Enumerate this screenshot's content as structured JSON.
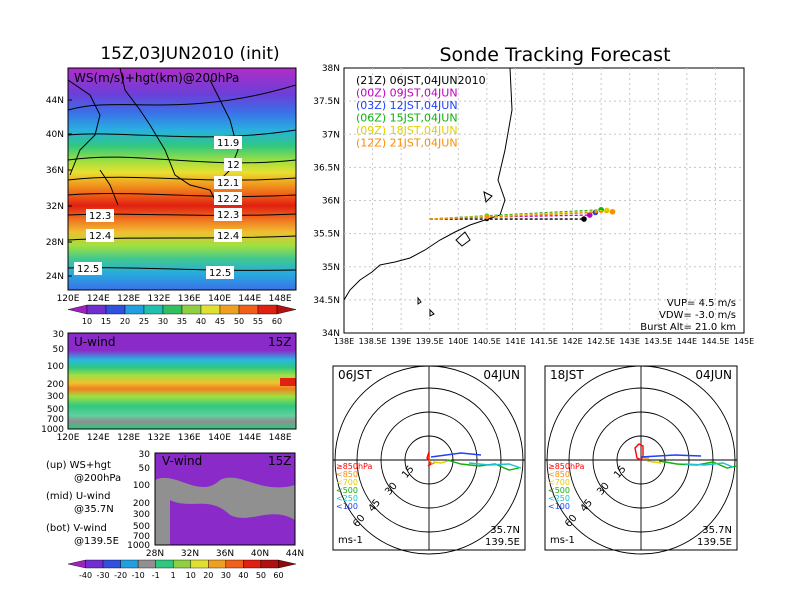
{
  "left_title": "15Z,03JUN2010 (init)",
  "right_title": "Sonde Tracking Forecast",
  "map_panel": {
    "label": "WS(m/s)+hgt(km)@200hPa",
    "lat_ticks": [
      "44N",
      "40N",
      "36N",
      "32N",
      "28N",
      "24N"
    ],
    "lon_ticks": [
      "120E",
      "124E",
      "128E",
      "132E",
      "136E",
      "140E",
      "144E",
      "148E"
    ],
    "contour_labels": [
      "11.9",
      "12",
      "12.1",
      "12.2",
      "12.3",
      "12.3",
      "12.4",
      "12.4",
      "12.5",
      "12.5"
    ]
  },
  "ws_colorbar": {
    "ticks": [
      "10",
      "15",
      "20",
      "25",
      "30",
      "35",
      "40",
      "45",
      "50",
      "55",
      "60"
    ]
  },
  "u_panel": {
    "label": "U-wind",
    "time": "15Z",
    "p_ticks": [
      "30",
      "50",
      "100",
      "200",
      "300",
      "500",
      "700",
      "1000"
    ],
    "lon_ticks": [
      "120E",
      "124E",
      "128E",
      "132E",
      "136E",
      "140E",
      "144E",
      "148E"
    ]
  },
  "v_panel": {
    "label": "V-wind",
    "time": "15Z",
    "p_ticks": [
      "30",
      "50",
      "100",
      "200",
      "300",
      "500",
      "700",
      "1000"
    ],
    "lat_ticks": [
      "28N",
      "32N",
      "36N",
      "40N",
      "44N"
    ]
  },
  "notes": [
    {
      "a": "(up) WS+hgt",
      "b": "@200hPa"
    },
    {
      "a": "(mid) U-wind",
      "b": "@35.7N"
    },
    {
      "a": "(bot) V-wind",
      "b": "@139.5E"
    }
  ],
  "uv_colorbar": {
    "ticks": [
      "-40",
      "-30",
      "-20",
      "-10",
      "-1",
      "1",
      "10",
      "20",
      "30",
      "40",
      "50",
      "60"
    ]
  },
  "track_map": {
    "lat_ticks": [
      "38N",
      "37.5N",
      "37N",
      "36.5N",
      "36N",
      "35.5N",
      "35N",
      "34.5N",
      "34N"
    ],
    "lon_ticks": [
      "138E",
      "138.5E",
      "139E",
      "139.5E",
      "140E",
      "140.5E",
      "141E",
      "141.5E",
      "142E",
      "142.5E",
      "143E",
      "143.5E",
      "144E",
      "144.5E",
      "145E"
    ],
    "legend": [
      {
        "text": "(21Z) 06JST,04JUN2010",
        "color": "#000000"
      },
      {
        "text": "(00Z) 09JST,04JUN",
        "color": "#c000c0"
      },
      {
        "text": "(03Z) 12JST,04JUN",
        "color": "#2040ff"
      },
      {
        "text": "(06Z) 15JST,04JUN",
        "color": "#10b010"
      },
      {
        "text": "(09Z) 18JST,04JUN",
        "color": "#e0d000"
      },
      {
        "text": "(12Z) 21JST,04JUN",
        "color": "#ff8c00"
      }
    ],
    "params": [
      "VUP= 4.5 m/s",
      "VDW= -3.0 m/s",
      "Burst Alt= 21.0 km"
    ]
  },
  "polar_panels": [
    {
      "time": "06JST",
      "date": "04JUN",
      "lat": "35.7N",
      "lon": "139.5E",
      "units": "ms-1"
    },
    {
      "time": "18JST",
      "date": "04JUN",
      "lat": "35.7N",
      "lon": "139.5E",
      "units": "ms-1"
    }
  ],
  "polar_common": {
    "ring_labels": [
      "15",
      "30",
      "45",
      "60"
    ],
    "pressure_legend": [
      {
        "text": "≥850hPa",
        "color": "#ff0000"
      },
      {
        "text": "<850",
        "color": "#ff8c00"
      },
      {
        "text": "<700",
        "color": "#e0d000"
      },
      {
        "text": "<500",
        "color": "#10b010"
      },
      {
        "text": "<250",
        "color": "#20c0d0"
      },
      {
        "text": "<100",
        "color": "#2040ff"
      }
    ]
  },
  "chart_data": [
    {
      "type": "heatmap",
      "title": "15Z,03JUN2010 (init)",
      "label": "WS(m/s)+hgt(km)@200hPa",
      "xlim": [
        120,
        150
      ],
      "ylim": [
        22,
        48
      ],
      "colorbar": [
        10,
        15,
        20,
        25,
        30,
        35,
        40,
        45,
        50,
        55,
        60
      ],
      "contours_km": [
        11.9,
        12,
        12.1,
        12.2,
        12.3,
        12.4,
        12.5
      ]
    },
    {
      "type": "heatmap",
      "label": "U-wind",
      "time": "15Z",
      "xlim": [
        120,
        150
      ],
      "y_pressure_hPa": [
        30,
        1000
      ]
    },
    {
      "type": "heatmap",
      "label": "V-wind",
      "time": "15Z",
      "xlim": [
        28,
        44
      ],
      "y_pressure_hPa": [
        30,
        1000
      ],
      "colorbar": [
        -40,
        -30,
        -20,
        -10,
        -1,
        1,
        10,
        20,
        30,
        40,
        50,
        60
      ]
    },
    {
      "type": "line",
      "title": "Sonde Tracking Forecast",
      "xlim": [
        138,
        145
      ],
      "ylim": [
        34,
        38
      ],
      "series": [
        {
          "name": "(21Z) 06JST,04JUN2010",
          "color": "#000000",
          "x": [
            139.5,
            140.5,
            142.2
          ],
          "y": [
            35.72,
            35.72,
            35.72
          ]
        },
        {
          "name": "(00Z) 09JST,04JUN",
          "color": "#c000c0",
          "x": [
            139.5,
            140.5,
            142.3
          ],
          "y": [
            35.72,
            35.75,
            35.78
          ]
        },
        {
          "name": "(03Z) 12JST,04JUN",
          "color": "#2040ff",
          "x": [
            139.5,
            140.5,
            142.4
          ],
          "y": [
            35.72,
            35.76,
            35.82
          ]
        },
        {
          "name": "(06Z) 15JST,04JUN",
          "color": "#10b010",
          "x": [
            139.5,
            140.5,
            142.5
          ],
          "y": [
            35.72,
            35.77,
            35.86
          ]
        },
        {
          "name": "(09Z) 18JST,04JUN",
          "color": "#e0d000",
          "x": [
            139.5,
            140.5,
            142.6
          ],
          "y": [
            35.72,
            35.76,
            35.85
          ]
        },
        {
          "name": "(12Z) 21JST,04JUN",
          "color": "#ff8c00",
          "x": [
            139.5,
            140.5,
            142.7
          ],
          "y": [
            35.72,
            35.75,
            35.83
          ]
        }
      ]
    }
  ]
}
